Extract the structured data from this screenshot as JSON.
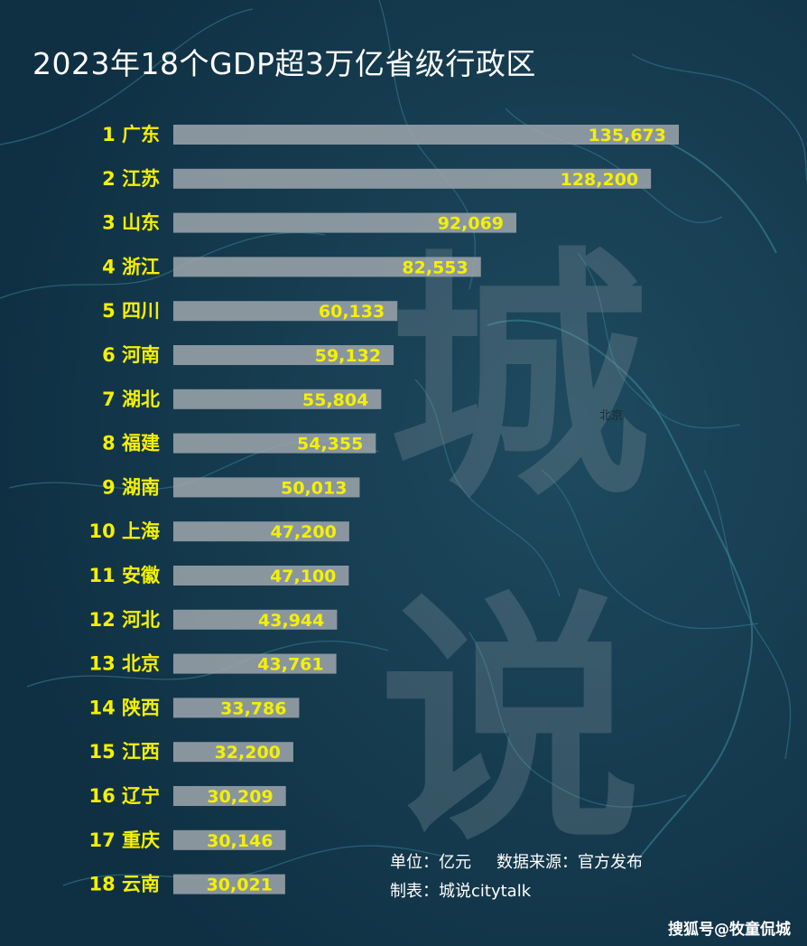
{
  "title": "2023年18个GDP超3万亿省级行政区",
  "map_label": "北京",
  "watermark": "城说",
  "footnote": {
    "unit": "单位：亿元",
    "source": "数据来源：官方发布",
    "maker": "制表：城说citytalk"
  },
  "credit": "搜狐号@牧童侃城",
  "colors": {
    "background": "#14384c",
    "label": "#f4f000",
    "bar": "#9aa3aa"
  },
  "chart_data": {
    "type": "bar",
    "orientation": "horizontal",
    "title": "2023年18个GDP超3万亿省级行政区",
    "categories": [
      "1 广东",
      "2 江苏",
      "3 山东",
      "4 浙江",
      "5 四川",
      "6 河南",
      "7 湖北",
      "8 福建",
      "9 湖南",
      "10 上海",
      "11 安徽",
      "12 河北",
      "13 北京",
      "14 陕西",
      "15 江西",
      "16 辽宁",
      "17 重庆",
      "18 云南"
    ],
    "value_labels": [
      "135,673",
      "128,200",
      "92,069",
      "82,553",
      "60,133",
      "59,132",
      "55,804",
      "54,355",
      "50,013",
      "47,200",
      "47,100",
      "43,944",
      "43,761",
      "33,786",
      "32,200",
      "30,209",
      "30,146",
      "30,021"
    ],
    "values": [
      135673,
      128200,
      92069,
      82553,
      60133,
      59132,
      55804,
      54355,
      50013,
      47200,
      47100,
      43944,
      43761,
      33786,
      32200,
      30209,
      30146,
      30021
    ],
    "xlabel": "",
    "ylabel": "",
    "xlim": [
      0,
      135673
    ],
    "grid": false,
    "legend": false
  }
}
